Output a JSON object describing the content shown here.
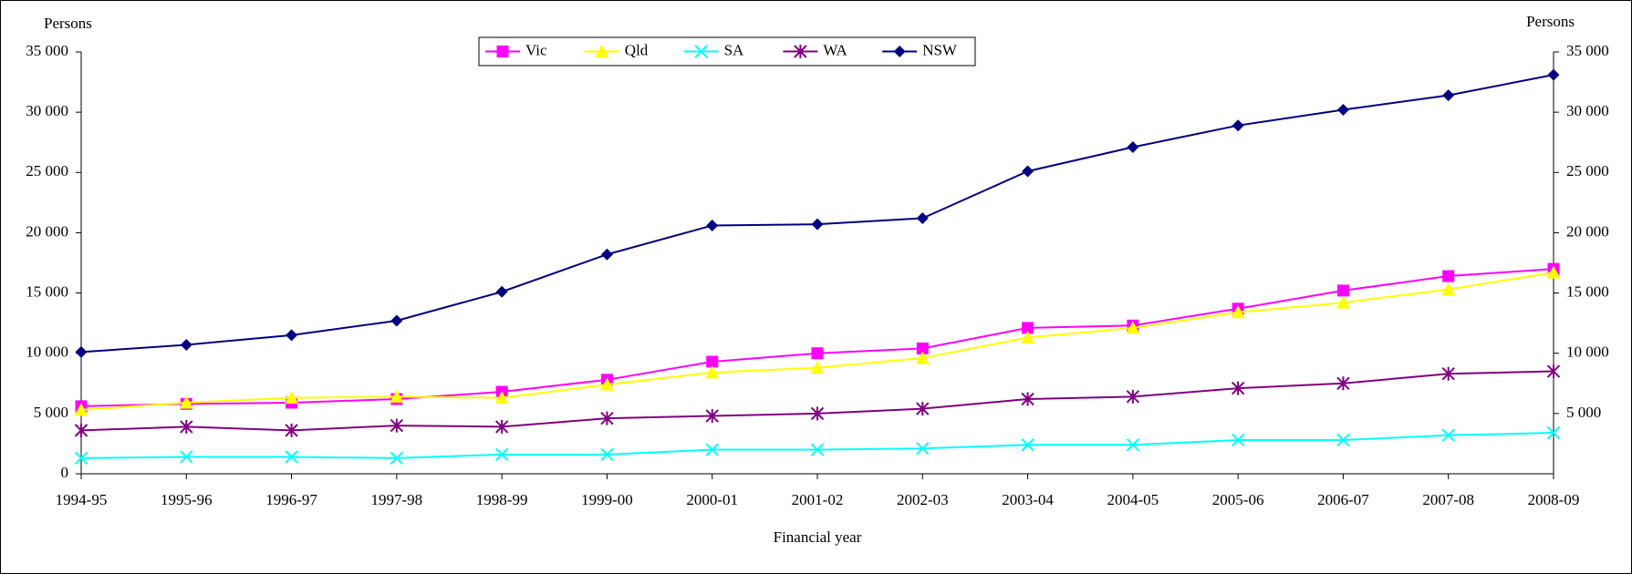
{
  "chart_data": {
    "type": "line",
    "x_label": "Financial year",
    "y_label": "Persons",
    "y2_label": "Persons",
    "categories": [
      "1994-95",
      "1995-96",
      "1996-97",
      "1997-98",
      "1998-99",
      "1999-00",
      "2000-01",
      "2001-02",
      "2002-03",
      "2003-04",
      "2004-05",
      "2005-06",
      "2006-07",
      "2007-08",
      "2008-09"
    ],
    "series": [
      {
        "name": "Vic",
        "color": "#ff00ff",
        "marker": "square",
        "values": [
          5600,
          5800,
          5900,
          6200,
          6800,
          7800,
          9300,
          10000,
          10400,
          12100,
          12300,
          13700,
          15200,
          16400,
          17000
        ]
      },
      {
        "name": "Qld",
        "color": "#ffff00",
        "marker": "triangle",
        "values": [
          5300,
          5900,
          6300,
          6400,
          6300,
          7400,
          8400,
          8800,
          9600,
          11300,
          12100,
          13400,
          14200,
          15300,
          16700
        ]
      },
      {
        "name": "SA",
        "color": "#00ffff",
        "marker": "x",
        "values": [
          1300,
          1400,
          1400,
          1300,
          1600,
          1600,
          2000,
          2000,
          2100,
          2400,
          2400,
          2800,
          2800,
          3200,
          3400
        ]
      },
      {
        "name": "WA",
        "color": "#800080",
        "marker": "asterisk",
        "values": [
          3600,
          3900,
          3600,
          4000,
          3900,
          4600,
          4800,
          5000,
          5400,
          6200,
          6400,
          7100,
          7500,
          8300,
          8500
        ]
      },
      {
        "name": "NSW",
        "color": "#000080",
        "marker": "diamond",
        "values": [
          10100,
          10700,
          11500,
          12700,
          15100,
          18200,
          20600,
          20700,
          21200,
          25100,
          27100,
          28900,
          30200,
          31400,
          33100
        ]
      }
    ],
    "ylim": [
      0,
      35000
    ],
    "yticks": [
      0,
      {
        "value": 5000,
        "label": "5 000"
      },
      {
        "value": 10000,
        "label": "10 000"
      },
      {
        "value": 15000,
        "label": "15 000"
      },
      {
        "value": 20000,
        "label": "20 000"
      },
      {
        "value": 25000,
        "label": "25 000"
      },
      {
        "value": 30000,
        "label": "30 000"
      },
      {
        "value": 35000,
        "label": "35 000"
      }
    ],
    "y2lim": [
      0,
      35000
    ],
    "y2ticks": [
      {
        "value": 5000,
        "label": "5 000"
      },
      {
        "value": 10000,
        "label": "10 000"
      },
      {
        "value": 15000,
        "label": "15 000"
      },
      {
        "value": 20000,
        "label": "20 000"
      },
      {
        "value": 25000,
        "label": "25 000"
      },
      {
        "value": 30000,
        "label": "30 000"
      },
      {
        "value": 35000,
        "label": "35 000"
      }
    ],
    "grid": false,
    "legend": "top"
  }
}
